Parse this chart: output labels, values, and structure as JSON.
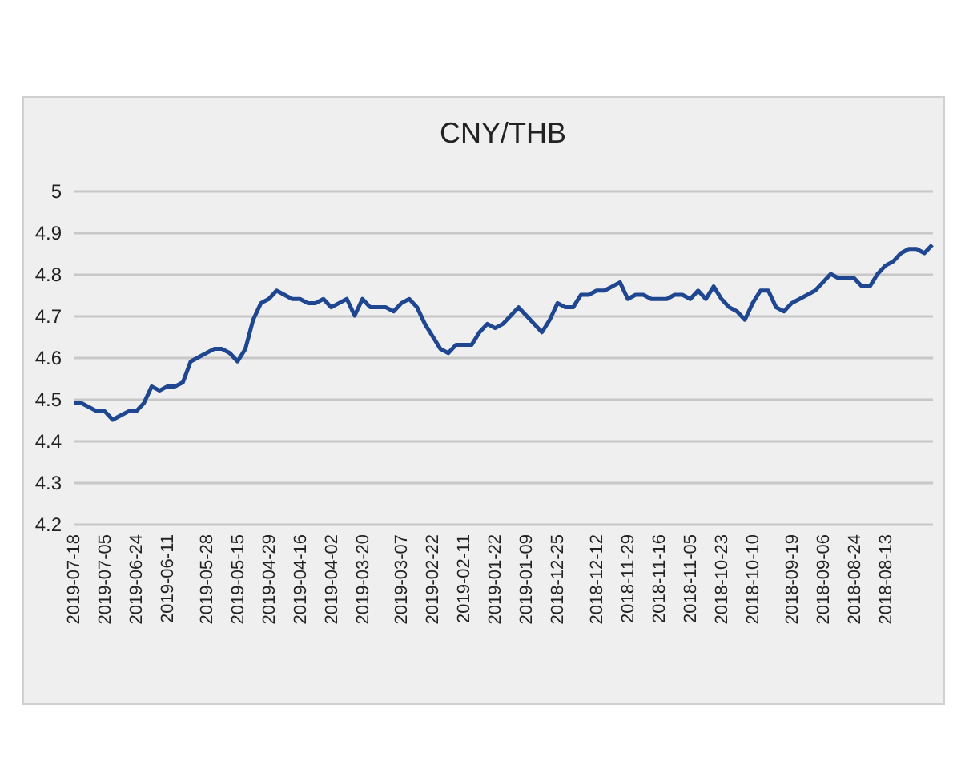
{
  "chart_data": {
    "type": "line",
    "title": "CNY/THB",
    "categories": [
      "2019-07-18",
      null,
      null,
      null,
      "2019-07-05",
      null,
      null,
      null,
      "2019-06-24",
      null,
      null,
      null,
      "2019-06-11",
      null,
      null,
      null,
      null,
      "2019-05-28",
      null,
      null,
      null,
      "2019-05-15",
      null,
      null,
      null,
      "2019-04-29",
      null,
      null,
      null,
      "2019-04-16",
      null,
      null,
      null,
      "2019-04-02",
      null,
      null,
      null,
      "2019-03-20",
      null,
      null,
      null,
      null,
      "2019-03-07",
      null,
      null,
      null,
      "2019-02-22",
      null,
      null,
      null,
      "2019-02-11",
      null,
      null,
      null,
      "2019-01-22",
      null,
      null,
      null,
      "2019-01-09",
      null,
      null,
      null,
      "2018-12-25",
      null,
      null,
      null,
      null,
      "2018-12-12",
      null,
      null,
      null,
      "2018-11-29",
      null,
      null,
      null,
      "2018-11-16",
      null,
      null,
      null,
      "2018-11-05",
      null,
      null,
      null,
      "2018-10-23",
      null,
      null,
      null,
      "2018-10-10",
      null,
      null,
      null,
      null,
      "2018-09-19",
      null,
      null,
      null,
      "2018-09-06",
      null,
      null,
      null,
      "2018-08-24",
      null,
      null,
      null,
      "2018-08-13",
      null,
      null,
      null,
      null,
      null,
      null
    ],
    "values": [
      4.49,
      4.49,
      4.48,
      4.47,
      4.47,
      4.45,
      4.46,
      4.47,
      4.47,
      4.49,
      4.53,
      4.52,
      4.53,
      4.53,
      4.54,
      4.59,
      4.6,
      4.61,
      4.62,
      4.62,
      4.61,
      4.59,
      4.62,
      4.69,
      4.73,
      4.74,
      4.76,
      4.75,
      4.74,
      4.74,
      4.73,
      4.73,
      4.74,
      4.72,
      4.73,
      4.74,
      4.7,
      4.74,
      4.72,
      4.72,
      4.72,
      4.71,
      4.73,
      4.74,
      4.72,
      4.68,
      4.65,
      4.62,
      4.61,
      4.63,
      4.63,
      4.63,
      4.66,
      4.68,
      4.67,
      4.68,
      4.7,
      4.72,
      4.7,
      4.68,
      4.66,
      4.69,
      4.73,
      4.72,
      4.72,
      4.75,
      4.75,
      4.76,
      4.76,
      4.77,
      4.78,
      4.74,
      4.75,
      4.75,
      4.74,
      4.74,
      4.74,
      4.75,
      4.75,
      4.74,
      4.76,
      4.74,
      4.77,
      4.74,
      4.72,
      4.71,
      4.69,
      4.73,
      4.76,
      4.76,
      4.72,
      4.71,
      4.73,
      4.74,
      4.75,
      4.76,
      4.78,
      4.8,
      4.79,
      4.79,
      4.79,
      4.77,
      4.77,
      4.8,
      4.82,
      4.83,
      4.85,
      4.86,
      4.86,
      4.85,
      4.87
    ],
    "color": "#1f4690",
    "ylim": [
      4.2,
      5
    ],
    "yticks": [
      4.2,
      4.3,
      4.4,
      4.5,
      4.6,
      4.7,
      4.8,
      4.9,
      5
    ],
    "grid": "y"
  }
}
